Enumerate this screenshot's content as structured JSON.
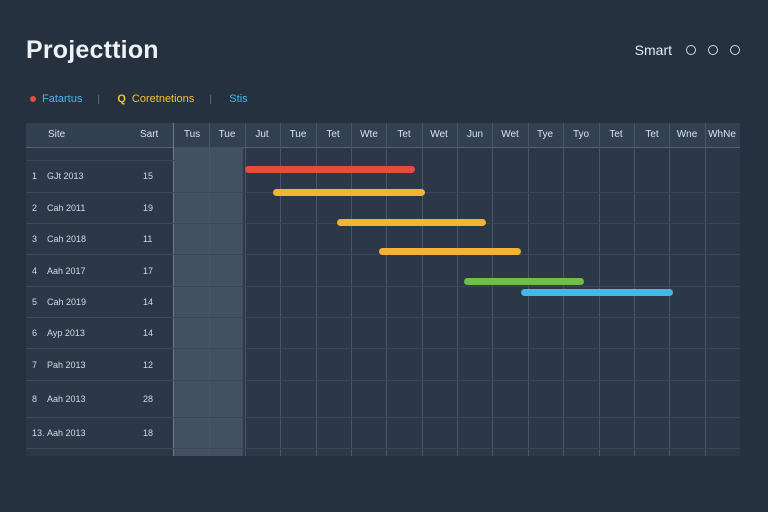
{
  "app": {
    "title": "Projecttion"
  },
  "topbar": {
    "smart_label": "Smart"
  },
  "legend": [
    {
      "label": "Fatartus",
      "color": "#e84a3f"
    },
    {
      "label": "Coretnetions",
      "color": "#f2c230"
    },
    {
      "label": "Stis",
      "color": "#45b8e6"
    }
  ],
  "table": {
    "col_site": "Site",
    "col_start": "Sart",
    "days": [
      "Tus",
      "Tue",
      "Jut",
      "Tue",
      "Tet",
      "Wte",
      "Tet",
      "Wet",
      "Jun",
      "Wet",
      "Tye",
      "Tyo",
      "Tet",
      "Tet",
      "Wne",
      "WhNe"
    ],
    "rows": [
      {
        "num": "1",
        "date": "GJt 2013",
        "value": "15"
      },
      {
        "num": "2",
        "date": "Cah 2011",
        "value": "19"
      },
      {
        "num": "3",
        "date": "Cah 2018",
        "value": "11"
      },
      {
        "num": "4",
        "date": "Aah 2017",
        "value": "17"
      },
      {
        "num": "5",
        "date": "Cah 2019",
        "value": "14"
      },
      {
        "num": "6",
        "date": "Ayp 2013",
        "value": "14"
      },
      {
        "num": "7",
        "date": "Pah 2013",
        "value": "12"
      },
      {
        "num": "8",
        "date": "Aah 2013",
        "value": "28"
      },
      {
        "num": "13.",
        "date": "Aah 2013",
        "value": "18"
      }
    ]
  },
  "tasks": [
    {
      "color": "#e84a3f",
      "start": 2.0,
      "end": 6.8
    },
    {
      "color": "#f5b335",
      "start": 2.8,
      "end": 7.1
    },
    {
      "color": "#f5b335",
      "start": 4.6,
      "end": 8.8
    },
    {
      "color": "#f5b335",
      "start": 5.8,
      "end": 9.8
    },
    {
      "color": "#6cc04a",
      "start": 8.2,
      "end": 11.6
    },
    {
      "color": "#45b8e6",
      "start": 9.8,
      "end": 14.1
    }
  ]
}
